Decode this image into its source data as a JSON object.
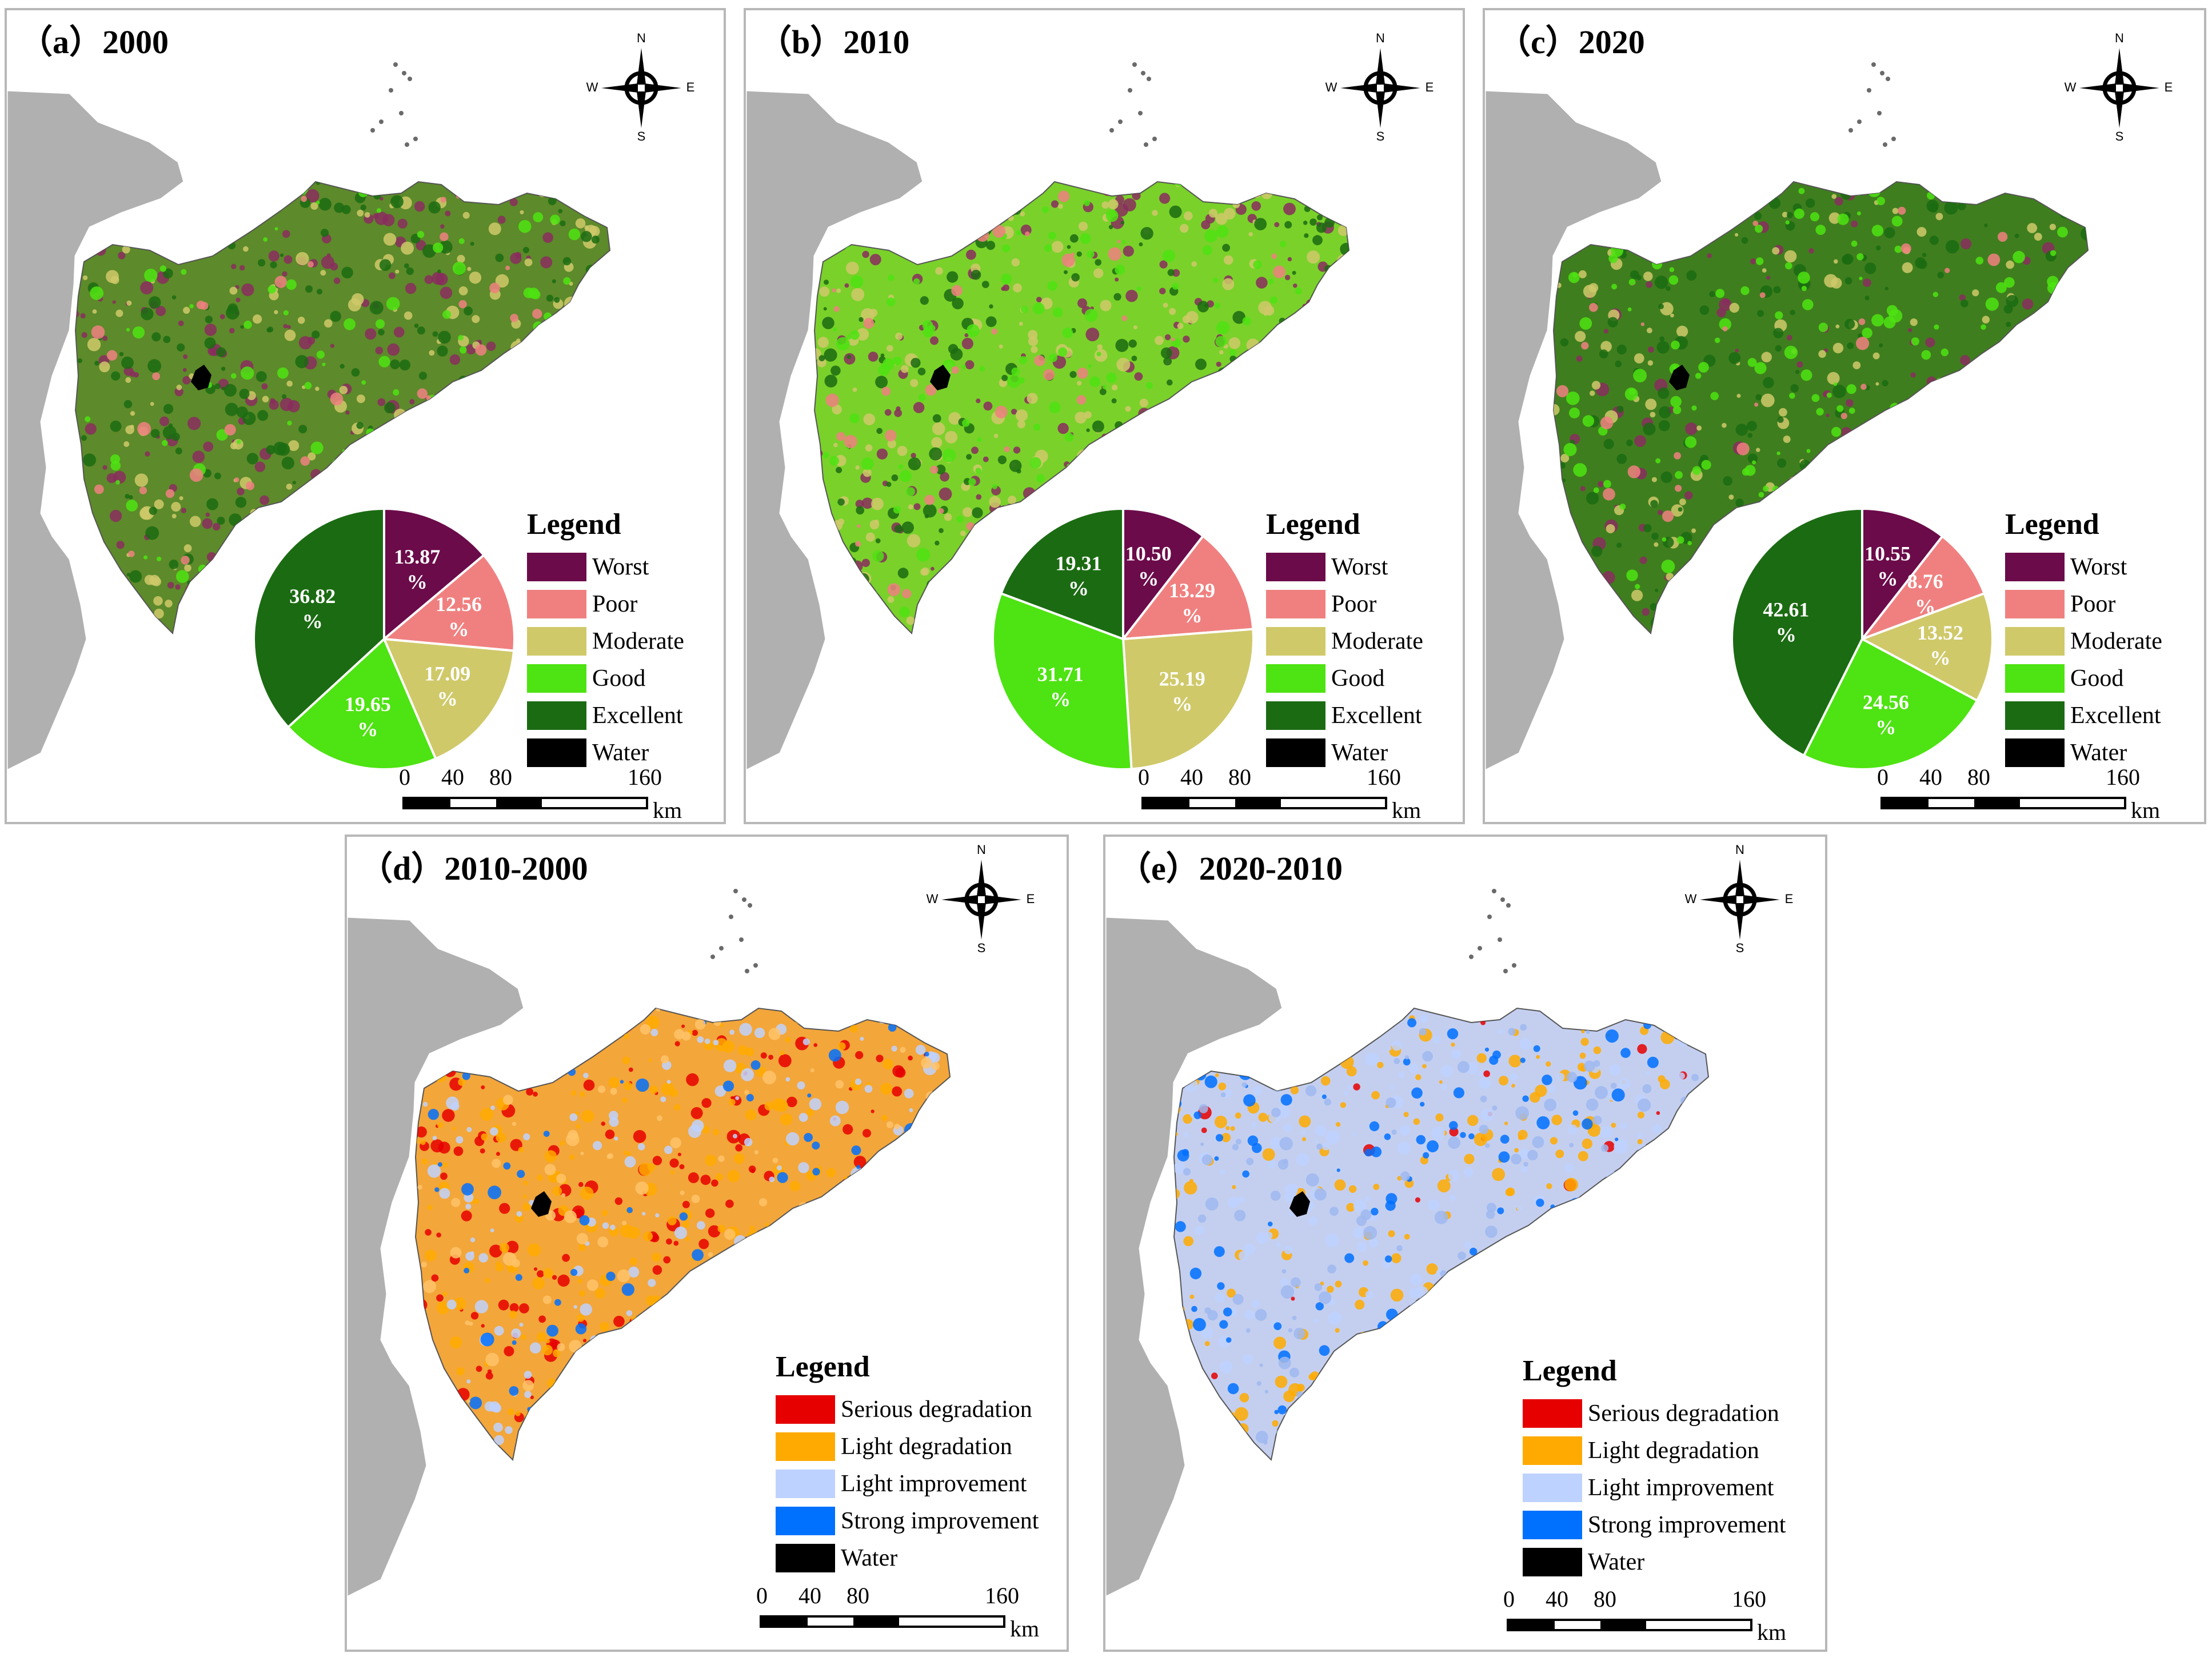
{
  "compass": {
    "n": "N",
    "s": "S",
    "e": "E",
    "w": "W"
  },
  "scale": {
    "ticks": [
      "0",
      "40",
      "80",
      "160"
    ],
    "unit": "km"
  },
  "eco_legend": {
    "title": "Legend",
    "items": [
      {
        "label": "Worst",
        "color": "#6b0b4a"
      },
      {
        "label": "Poor",
        "color": "#f08080"
      },
      {
        "label": "Moderate",
        "color": "#cfc96a"
      },
      {
        "label": "Good",
        "color": "#4ee312"
      },
      {
        "label": "Excellent",
        "color": "#1b6b12"
      },
      {
        "label": "Water",
        "color": "#000000"
      }
    ]
  },
  "change_legend": {
    "title": "Legend",
    "items": [
      {
        "label": "Serious degradation",
        "color": "#e60000"
      },
      {
        "label": "Light degradation",
        "color": "#ffaa00"
      },
      {
        "label": "Light improvement",
        "color": "#bed2ff"
      },
      {
        "label": "Strong improvement",
        "color": "#0070ff"
      },
      {
        "label": "Water",
        "color": "#000000"
      }
    ]
  },
  "panels": [
    {
      "id": "a",
      "title": "（a）2000",
      "pie": [
        {
          "value": 13.87,
          "label": "13.87",
          "pct": "%"
        },
        {
          "value": 12.56,
          "label": "12.56",
          "pct": "%"
        },
        {
          "value": 17.09,
          "label": "17.09",
          "pct": "%"
        },
        {
          "value": 19.65,
          "label": "19.65",
          "pct": "%"
        },
        {
          "value": 36.82,
          "label": "36.82",
          "pct": "%"
        }
      ]
    },
    {
      "id": "b",
      "title": "（b）2010",
      "pie": [
        {
          "value": 10.5,
          "label": "10.50",
          "pct": "%"
        },
        {
          "value": 13.29,
          "label": "13.29",
          "pct": "%"
        },
        {
          "value": 25.19,
          "label": "25.19",
          "pct": "%"
        },
        {
          "value": 31.71,
          "label": "31.71",
          "pct": "%"
        },
        {
          "value": 19.31,
          "label": "19.31",
          "pct": "%"
        }
      ]
    },
    {
      "id": "c",
      "title": "（c）2020",
      "pie": [
        {
          "value": 10.55,
          "label": "10.55",
          "pct": "%"
        },
        {
          "value": 8.76,
          "label": "8.76",
          "pct": "%"
        },
        {
          "value": 13.52,
          "label": "13.52",
          "pct": "%"
        },
        {
          "value": 24.56,
          "label": "24.56",
          "pct": "%"
        },
        {
          "value": 42.61,
          "label": "42.61",
          "pct": "%"
        }
      ]
    },
    {
      "id": "d",
      "title": "（d）2010-2000"
    },
    {
      "id": "e",
      "title": "（e）2020-2010"
    }
  ],
  "chart_data": [
    {
      "type": "pie",
      "title": "（a）2000",
      "categories": [
        "Worst",
        "Poor",
        "Moderate",
        "Good",
        "Excellent"
      ],
      "values": [
        13.87,
        12.56,
        17.09,
        19.65,
        36.82
      ]
    },
    {
      "type": "pie",
      "title": "（b）2010",
      "categories": [
        "Worst",
        "Poor",
        "Moderate",
        "Good",
        "Excellent"
      ],
      "values": [
        10.5,
        13.29,
        25.19,
        31.71,
        19.31
      ]
    },
    {
      "type": "pie",
      "title": "（c）2020",
      "categories": [
        "Worst",
        "Poor",
        "Moderate",
        "Good",
        "Excellent"
      ],
      "values": [
        10.55,
        8.76,
        13.52,
        24.56,
        42.61
      ]
    }
  ]
}
